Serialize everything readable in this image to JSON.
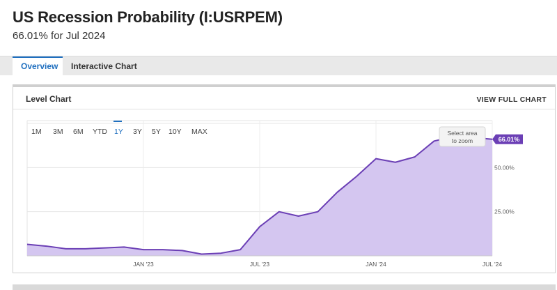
{
  "header": {
    "title": "US Recession Probability (I:USRPEM)",
    "subtitle": "66.01% for Jul 2024"
  },
  "tabs": [
    {
      "label": "Overview",
      "active": true
    },
    {
      "label": "Interactive Chart",
      "active": false
    }
  ],
  "panel": {
    "title": "Level Chart",
    "view_full": "VIEW FULL CHART",
    "range_buttons": [
      "1M",
      "3M",
      "6M",
      "YTD",
      "1Y",
      "3Y",
      "5Y",
      "10Y",
      "MAX"
    ],
    "active_range": "1Y",
    "zoom_hint_line1": "Select area",
    "zoom_hint_line2": "to zoom",
    "last_value_label": "66.01%"
  },
  "colors": {
    "accent": "#1f6fbf",
    "series_line": "#6b3fb5",
    "series_fill": "#d4c6f0",
    "badge": "#6b3fb5"
  },
  "chart_data": {
    "type": "area",
    "x": [
      "2022-07",
      "2022-08",
      "2022-09",
      "2022-10",
      "2022-11",
      "2022-12",
      "2023-01",
      "2023-02",
      "2023-03",
      "2023-04",
      "2023-05",
      "2023-06",
      "2023-07",
      "2023-08",
      "2023-09",
      "2023-10",
      "2023-11",
      "2023-12",
      "2024-01",
      "2024-02",
      "2024-03",
      "2024-04",
      "2024-05",
      "2024-06",
      "2024-07"
    ],
    "x_tick_labels": [
      "JAN '23",
      "JUL '23",
      "JAN '24",
      "JUL '24"
    ],
    "x_tick_positions": [
      "2023-01",
      "2023-07",
      "2024-01",
      "2024-07"
    ],
    "series": [
      {
        "values": [
          6.5,
          5.5,
          4.0,
          4.0,
          4.5,
          5.0,
          3.5,
          3.5,
          3.0,
          1.0,
          1.5,
          3.5,
          16.5,
          25.0,
          22.5,
          25.0,
          36.0,
          45.0,
          55.0,
          53.0,
          56.0,
          65.0,
          67.5,
          67.0,
          66.01
        ]
      }
    ],
    "y_tick_labels": [
      "25.00%",
      "50.00%"
    ],
    "y_ticks": [
      25,
      50
    ],
    "ylim": [
      0,
      75
    ],
    "last_value": 66.01,
    "grid": true
  }
}
